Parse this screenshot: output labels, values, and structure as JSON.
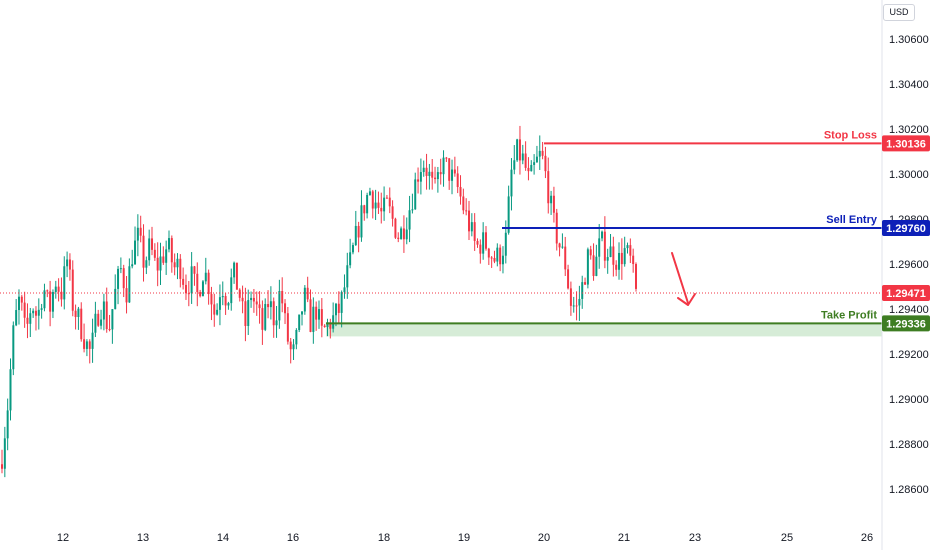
{
  "currency": "USD",
  "chart_data": {
    "type": "candlestick",
    "y_ticks": [
      "1.30600",
      "1.30400",
      "1.30200",
      "1.30000",
      "1.29800",
      "1.29600",
      "1.29400",
      "1.29200",
      "1.29000",
      "1.28800",
      "1.28600"
    ],
    "x_ticks": [
      "12",
      "13",
      "14",
      "16",
      "18",
      "19",
      "20",
      "21",
      "23",
      "25",
      "26"
    ],
    "ylim": [
      1.2852,
      1.3075
    ],
    "current_price": {
      "value": 1.29471,
      "label": "1.29471",
      "color": "#f23645"
    },
    "levels": [
      {
        "name": "Stop Loss",
        "value": 1.30136,
        "label": "1.30136",
        "color": "#f23645"
      },
      {
        "name": "Sell Entry",
        "value": 1.2976,
        "label": "1.29760",
        "color": "#0d20b8"
      },
      {
        "name": "Take Profit",
        "value": 1.29336,
        "label": "1.29336",
        "color": "#3e7d22"
      }
    ],
    "up_color": "#089981",
    "down_color": "#f23645",
    "price_series": [
      1.2875,
      1.2898,
      1.2932,
      1.2945,
      1.2928,
      1.2943,
      1.2936,
      1.295,
      1.2939,
      1.2953,
      1.2947,
      1.2962,
      1.2941,
      1.2935,
      1.2926,
      1.292,
      1.2937,
      1.2943,
      1.293,
      1.2946,
      1.2958,
      1.2948,
      1.2965,
      1.2972,
      1.296,
      1.2968,
      1.2958,
      1.2963,
      1.2968,
      1.2958,
      1.296,
      1.295,
      1.2954,
      1.2946,
      1.2958,
      1.295,
      1.2936,
      1.2952,
      1.2944,
      1.2956,
      1.2948,
      1.2932,
      1.2947,
      1.294,
      1.2931,
      1.2944,
      1.2935,
      1.2949,
      1.2929,
      1.2918,
      1.293,
      1.2946,
      1.2934,
      1.294,
      1.2929,
      1.2933,
      1.2936,
      1.294,
      1.2952,
      1.2963,
      1.2975,
      1.2985,
      1.2993,
      1.2988,
      1.2982,
      1.2986,
      1.2979,
      1.2972,
      1.2978,
      1.2987,
      1.2999,
      1.3006,
      1.3,
      1.2991,
      1.3004,
      1.3003,
      1.2998,
      1.2993,
      1.2984,
      1.2976,
      1.2967,
      1.297,
      1.2968,
      1.2962,
      1.2964,
      1.297,
      1.3001,
      1.301,
      1.3006,
      1.2996,
      1.3004,
      1.3009,
      1.2996,
      1.2979,
      1.2969,
      1.2961,
      1.2943,
      1.294,
      1.2951,
      1.2964,
      1.2958,
      1.297,
      1.2966,
      1.2965,
      1.2961,
      1.2966,
      1.2962,
      1.2947
    ]
  }
}
